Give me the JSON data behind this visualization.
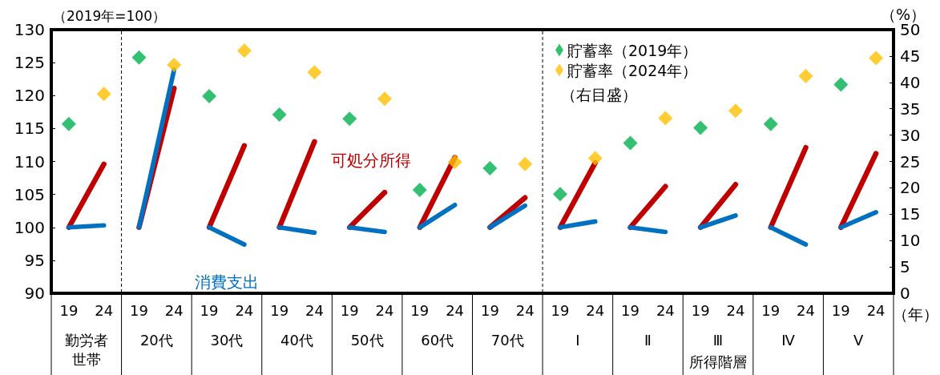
{
  "chart_data": {
    "type": "line",
    "ylabel": "（2019年=100）",
    "y2label": "（%）",
    "xlabel": "（年）",
    "categories": [
      "19",
      "24",
      "19",
      "24",
      "19",
      "24",
      "19",
      "24",
      "19",
      "24",
      "19",
      "24",
      "19",
      "24",
      "19",
      "24",
      "19",
      "24",
      "19",
      "24",
      "19",
      "24",
      "19",
      "24"
    ],
    "series": [
      {
        "name": "可処分所得",
        "color": "#c00000",
        "values": [
          100,
          109.6,
          100,
          121.1,
          100,
          112.4,
          100,
          113.0,
          100,
          105.3,
          100,
          110.6,
          100,
          104.5,
          100,
          109.8,
          100,
          106.2,
          100,
          106.5,
          100,
          112.1,
          100,
          111.2
        ]
      },
      {
        "name": "消費支出",
        "color": "#0070c0",
        "values": [
          100,
          100.3,
          100,
          123.9,
          100,
          97.4,
          100,
          99.2,
          100,
          99.3,
          100,
          103.4,
          100,
          103.3,
          100,
          100.9,
          100,
          99.3,
          100,
          101.8,
          100,
          97.4,
          100,
          102.3
        ]
      },
      {
        "name": "貯蓄率（2019年）",
        "type": "scatter",
        "marker": "diamond",
        "axis": "y2",
        "color": "#00b050",
        "values": [
          32.1,
          null,
          44.7,
          null,
          37.4,
          null,
          33.9,
          null,
          33.1,
          null,
          19.6,
          null,
          23.7,
          null,
          18.8,
          null,
          28.5,
          null,
          31.4,
          null,
          32.1,
          null,
          39.6,
          null
        ]
      },
      {
        "name": "貯蓄率（2024年）",
        "type": "scatter",
        "marker": "diamond",
        "axis": "y2",
        "color": "#ffc000",
        "values": [
          null,
          37.8,
          null,
          43.3,
          null,
          46.0,
          null,
          41.9,
          null,
          36.9,
          null,
          24.9,
          null,
          24.5,
          null,
          25.6,
          null,
          33.2,
          null,
          34.6,
          null,
          41.2,
          null,
          44.6
        ]
      }
    ],
    "ylim": [
      90,
      130
    ],
    "yticks": [
      90,
      95,
      100,
      105,
      110,
      115,
      120,
      125,
      130
    ],
    "y2lim": [
      0,
      50
    ],
    "y2ticks": [
      0,
      5,
      10,
      15,
      20,
      25,
      30,
      35,
      40,
      45,
      50
    ],
    "annotations": [
      "勤労者世帯",
      "20代",
      "30代",
      "40代",
      "50代",
      "60代",
      "70代",
      "Ⅰ",
      "Ⅱ",
      "Ⅲ",
      "Ⅳ",
      "Ⅴ",
      "所得階層",
      "（右目盛）"
    ],
    "legend": "top right",
    "grid": false
  }
}
